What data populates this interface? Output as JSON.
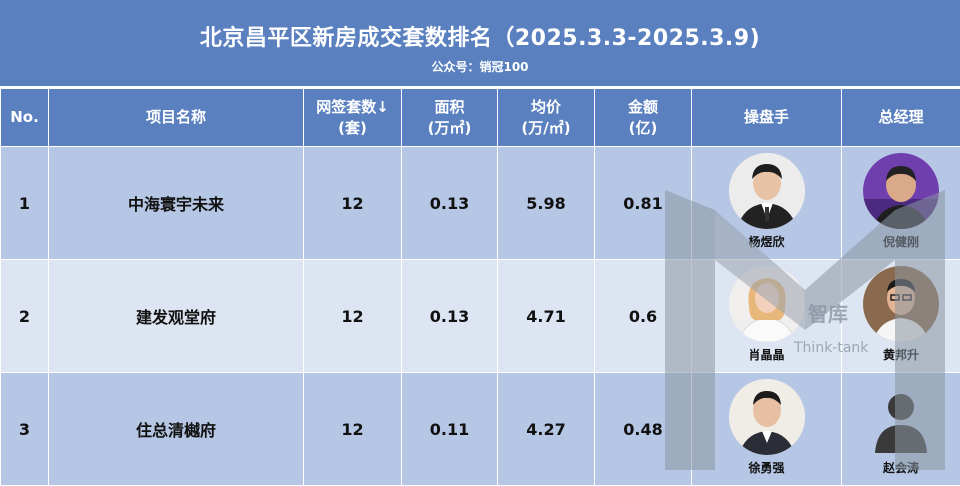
{
  "header": {
    "title": "北京昌平区新房成交套数排名（2025.3.3-2025.3.9)",
    "subtitle": "公众号：销冠100"
  },
  "columns": {
    "no": "No.",
    "project": "项目名称",
    "units_line1": "网签套数↓",
    "units_line2": "(套)",
    "area_line1": "面积",
    "area_line2": "(万㎡)",
    "price_line1": "均价",
    "price_line2": "(万/㎡)",
    "amount_line1": "金额",
    "amount_line2": "(亿)",
    "operator": "操盘手",
    "manager": "总经理"
  },
  "rows": [
    {
      "no": "1",
      "project": "中海寰宇未来",
      "units": "12",
      "area": "0.13",
      "price": "5.98",
      "amount": "0.81",
      "operator": "杨煜欣",
      "manager": "倪健刚"
    },
    {
      "no": "2",
      "project": "建发观堂府",
      "units": "12",
      "area": "0.13",
      "price": "4.71",
      "amount": "0.6",
      "operator": "肖晶晶",
      "manager": "黄邦升"
    },
    {
      "no": "3",
      "project": "住总清樾府",
      "units": "12",
      "area": "0.11",
      "price": "4.27",
      "amount": "0.48",
      "operator": "徐勇强",
      "manager": "赵会涛"
    }
  ],
  "watermark": {
    "cn": "智库",
    "en": "Think-tank"
  },
  "colors": {
    "header_bg": "#5a80c0",
    "row_dark": "#b5c7e4",
    "row_light": "#dde5f2"
  }
}
